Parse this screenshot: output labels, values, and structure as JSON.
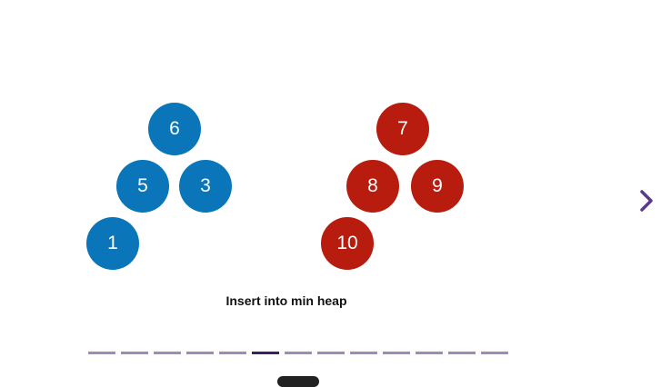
{
  "caption": "Insert into min heap",
  "colors": {
    "left_heap": "#0a75b9",
    "right_heap": "#b71c0e",
    "progress_inactive": "#a08bb8",
    "progress_active": "#3b1f6b",
    "arrow": "#5a3a8a"
  },
  "left_heap": {
    "nodes": [
      "6",
      "5",
      "3",
      "1"
    ]
  },
  "right_heap": {
    "nodes": [
      "7",
      "8",
      "9",
      "10"
    ]
  },
  "navigation": {
    "next_icon": "chevron-right-icon",
    "total_steps": 13,
    "current_step": 6
  }
}
